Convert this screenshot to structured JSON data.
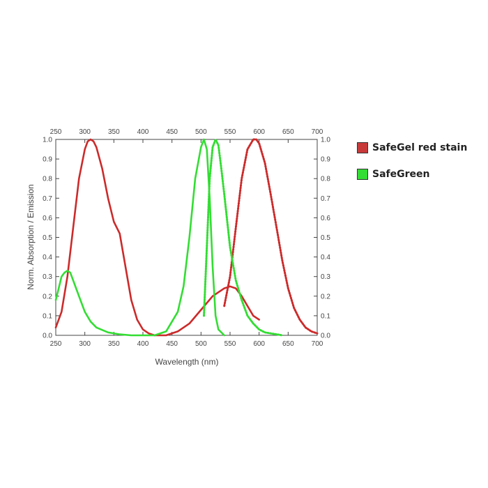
{
  "chart_data": {
    "type": "line",
    "xlabel": "Wavelength (nm)",
    "ylabel": "Norm. Absorption / Emission",
    "xlim": [
      250,
      700
    ],
    "ylim": [
      0.0,
      1.0
    ],
    "x_ticks": [
      "250",
      "300",
      "350",
      "400",
      "450",
      "500",
      "550",
      "600",
      "650",
      "700"
    ],
    "y_ticks": [
      "0.0",
      "0.1",
      "0.2",
      "0.3",
      "0.4",
      "0.5",
      "0.6",
      "0.7",
      "0.8",
      "0.9",
      "1.0"
    ],
    "grid": false,
    "legend_position": "right",
    "series": [
      {
        "name": "SafeGel red stain",
        "kind": "absorption",
        "style": "solid",
        "color": "#cc2a2a",
        "x": [
          250,
          260,
          270,
          280,
          290,
          300,
          305,
          310,
          315,
          320,
          330,
          340,
          350,
          360,
          370,
          380,
          390,
          400,
          410,
          420,
          440,
          460,
          480,
          500,
          520,
          540,
          550,
          560,
          570,
          580,
          590,
          600
        ],
        "y": [
          0.04,
          0.12,
          0.3,
          0.55,
          0.8,
          0.95,
          0.99,
          1.0,
          0.99,
          0.96,
          0.85,
          0.7,
          0.58,
          0.52,
          0.35,
          0.18,
          0.08,
          0.03,
          0.01,
          0.0,
          0.0,
          0.02,
          0.06,
          0.13,
          0.2,
          0.24,
          0.25,
          0.24,
          0.2,
          0.15,
          0.1,
          0.08
        ]
      },
      {
        "name": "SafeGel red stain",
        "kind": "emission",
        "style": "dotted",
        "color": "#cc2a2a",
        "x": [
          540,
          550,
          560,
          570,
          580,
          590,
          595,
          600,
          610,
          620,
          630,
          640,
          650,
          660,
          670,
          680,
          690,
          700
        ],
        "y": [
          0.15,
          0.3,
          0.55,
          0.8,
          0.95,
          1.0,
          1.0,
          0.98,
          0.88,
          0.72,
          0.55,
          0.38,
          0.24,
          0.14,
          0.08,
          0.04,
          0.02,
          0.01
        ]
      },
      {
        "name": "SafeGreen",
        "kind": "absorption",
        "style": "solid",
        "color": "#33dd33",
        "x": [
          250,
          255,
          260,
          265,
          270,
          275,
          280,
          290,
          300,
          310,
          320,
          340,
          360,
          380,
          400,
          420,
          440,
          460,
          470,
          480,
          490,
          500,
          505,
          510,
          515,
          520,
          525,
          530,
          540
        ],
        "y": [
          0.18,
          0.24,
          0.3,
          0.32,
          0.33,
          0.32,
          0.28,
          0.2,
          0.12,
          0.07,
          0.04,
          0.015,
          0.005,
          0.0,
          0.0,
          0.0,
          0.02,
          0.12,
          0.25,
          0.5,
          0.8,
          0.96,
          1.0,
          0.95,
          0.7,
          0.35,
          0.1,
          0.03,
          0.0
        ]
      },
      {
        "name": "SafeGreen",
        "kind": "emission",
        "style": "dotted",
        "color": "#33dd33",
        "x": [
          505,
          510,
          515,
          520,
          525,
          530,
          535,
          540,
          550,
          560,
          570,
          580,
          590,
          600,
          610,
          620,
          640
        ],
        "y": [
          0.1,
          0.45,
          0.8,
          0.96,
          1.0,
          0.97,
          0.85,
          0.72,
          0.45,
          0.28,
          0.18,
          0.1,
          0.06,
          0.03,
          0.015,
          0.01,
          0.0
        ]
      }
    ]
  },
  "legend": {
    "items": [
      {
        "label": "SafeGel red stain",
        "color": "#c83a3a"
      },
      {
        "label": "SafeGreen",
        "color": "#33dd33"
      }
    ]
  }
}
